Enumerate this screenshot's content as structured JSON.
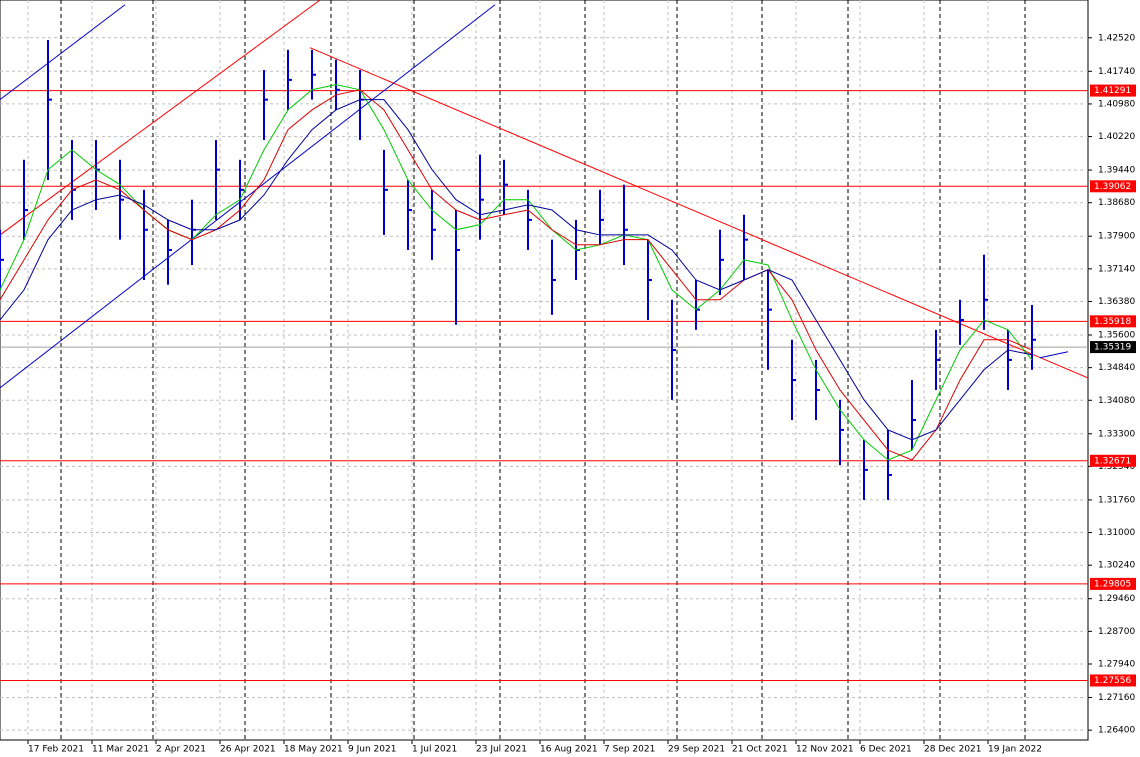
{
  "chart_data": {
    "type": "ohlc",
    "color": "#0000cc",
    "x": [
      0,
      6,
      12,
      18,
      24,
      30,
      36,
      42,
      48,
      54,
      60,
      66,
      72,
      78,
      84,
      90,
      96,
      102,
      108,
      114,
      120,
      126,
      132,
      138,
      144,
      150,
      156,
      162,
      168,
      174,
      180,
      186,
      192,
      198,
      204,
      210,
      216,
      222,
      228,
      234,
      240,
      246,
      252,
      258
    ],
    "high": [
      1.3805,
      1.3968,
      1.4247,
      1.4014,
      1.4014,
      1.3968,
      1.3898,
      1.3828,
      1.3875,
      1.4014,
      1.3968,
      1.4177,
      1.4224,
      1.4224,
      1.4201,
      1.4177,
      1.3991,
      1.3921,
      1.3898,
      1.3851,
      1.398,
      1.3968,
      1.3898,
      1.3782,
      1.3828,
      1.3898,
      1.391,
      1.3782,
      1.3642,
      1.3688,
      1.3805,
      1.384,
      1.3712,
      1.3549,
      1.3502,
      1.3409,
      1.3316,
      1.3339,
      1.3455,
      1.3572,
      1.3642,
      1.3747,
      1.3572,
      1.363
    ],
    "low": [
      1.3665,
      1.3782,
      1.3921,
      1.3828,
      1.3851,
      1.3782,
      1.3688,
      1.3677,
      1.3723,
      1.3828,
      1.3828,
      1.4014,
      1.4084,
      1.4108,
      1.4084,
      1.4014,
      1.3793,
      1.3758,
      1.3735,
      1.3584,
      1.3782,
      1.384,
      1.3758,
      1.3607,
      1.3688,
      1.377,
      1.3723,
      1.3595,
      1.3409,
      1.3572,
      1.3653,
      1.3688,
      1.3479,
      1.3362,
      1.3362,
      1.3257,
      1.3176,
      1.3176,
      1.3292,
      1.3432,
      1.3537,
      1.3572,
      1.3432,
      1.3479
    ],
    "close": [
      1.3735,
      1.3851,
      1.4108,
      1.3898,
      1.3945,
      1.3875,
      1.3805,
      1.3758,
      1.3805,
      1.3945,
      1.3898,
      1.4108,
      1.4154,
      1.4166,
      1.4131,
      1.4108,
      1.3898,
      1.3851,
      1.3805,
      1.3758,
      1.3875,
      1.391,
      1.3828,
      1.3688,
      1.3758,
      1.3828,
      1.3805,
      1.3688,
      1.3525,
      1.3619,
      1.3735,
      1.3782,
      1.3619,
      1.3455,
      1.3432,
      1.3339,
      1.3246,
      1.3234,
      1.3362,
      1.3502,
      1.3595,
      1.3642,
      1.3502,
      1.3549
    ],
    "lines": [
      {
        "color": "#00cc00",
        "values": [
          1.3665,
          1.3782,
          1.3945,
          1.3991,
          1.3945,
          1.391,
          1.3851,
          1.3805,
          1.3782,
          1.384,
          1.3875,
          1.3991,
          1.4084,
          1.4131,
          1.4143,
          1.4131,
          1.4038,
          1.3921,
          1.3851,
          1.3805,
          1.3817,
          1.3875,
          1.3875,
          1.3805,
          1.3758,
          1.377,
          1.3793,
          1.3782,
          1.3665,
          1.3619,
          1.3665,
          1.3735,
          1.3723,
          1.3595,
          1.3479,
          1.3386,
          1.3316,
          1.3269,
          1.3292,
          1.3409,
          1.3525,
          1.3595,
          1.3572,
          1.3502
        ]
      },
      {
        "color": "#dd0000",
        "values": [
          1.3642,
          1.3735,
          1.3828,
          1.3898,
          1.3921,
          1.3898,
          1.3851,
          1.3805,
          1.3782,
          1.3805,
          1.3851,
          1.3921,
          1.4038,
          1.4084,
          1.4119,
          1.4131,
          1.4084,
          1.3991,
          1.3898,
          1.3851,
          1.3828,
          1.384,
          1.3851,
          1.3805,
          1.377,
          1.377,
          1.3782,
          1.3782,
          1.3712,
          1.3642,
          1.3642,
          1.3688,
          1.3712,
          1.3642,
          1.3525,
          1.3432,
          1.3362,
          1.3292,
          1.3269,
          1.3339,
          1.3455,
          1.3549,
          1.3549,
          1.3525
        ]
      },
      {
        "color": "#000099",
        "values": [
          1.3595,
          1.3665,
          1.3782,
          1.3851,
          1.3875,
          1.3886,
          1.3863,
          1.3828,
          1.3805,
          1.3805,
          1.3828,
          1.3886,
          1.3968,
          1.4038,
          1.4084,
          1.4108,
          1.4108,
          1.4038,
          1.3945,
          1.3875,
          1.384,
          1.3851,
          1.3863,
          1.3851,
          1.3805,
          1.3793,
          1.3793,
          1.3793,
          1.3758,
          1.3688,
          1.3665,
          1.3688,
          1.3712,
          1.3688,
          1.3595,
          1.3502,
          1.3409,
          1.3339,
          1.3316,
          1.3339,
          1.3409,
          1.3479,
          1.3525,
          1.3514
        ]
      }
    ],
    "trendlines": [
      {
        "color": "#ff0000",
        "x": [
          77.5,
          272
        ],
        "y": [
          1.4229,
          1.346
        ]
      },
      {
        "color": "#ff0000",
        "x": [
          0,
          80
        ],
        "y": [
          1.3793,
          1.434
        ]
      },
      {
        "color": "#0000cc",
        "x": [
          0,
          31.25
        ],
        "y": [
          1.4108,
          1.4329
        ]
      },
      {
        "color": "#0000cc",
        "x": [
          0,
          123.75
        ],
        "y": [
          1.3437,
          1.4329
        ]
      },
      {
        "color": "#0000cc",
        "x": [
          260,
          267
        ],
        "y": [
          1.3507,
          1.3521
        ]
      }
    ],
    "levels": [
      1.41291,
      1.39062,
      1.35918,
      1.32671,
      1.29805,
      1.27556
    ],
    "level_color": "#ff0000",
    "current_price": 1.35319,
    "separators": [
      15.25,
      38.25,
      61.25,
      82.75,
      103.5,
      125,
      146.25,
      169.25,
      190.5,
      212,
      235,
      256.25
    ],
    "grid": true,
    "xlim": [
      0,
      272
    ],
    "ylim": [
      1.2617,
      1.434
    ],
    "xticks": [
      {
        "value": 7,
        "label": "17 Feb 2021"
      },
      {
        "value": 23,
        "label": "11 Mar 2021"
      },
      {
        "value": 39,
        "label": "2 Apr 2021"
      },
      {
        "value": 55,
        "label": "26 Apr 2021"
      },
      {
        "value": 71,
        "label": "18 May 2021"
      },
      {
        "value": 87,
        "label": "9 Jun 2021"
      },
      {
        "value": 103,
        "label": "1 Jul 2021"
      },
      {
        "value": 119,
        "label": "23 Jul 2021"
      },
      {
        "value": 135,
        "label": "16 Aug 2021"
      },
      {
        "value": 151,
        "label": "7 Sep 2021"
      },
      {
        "value": 167,
        "label": "29 Sep 2021"
      },
      {
        "value": 183,
        "label": "21 Oct 2021"
      },
      {
        "value": 199,
        "label": "12 Nov 2021"
      },
      {
        "value": 215,
        "label": "6 Dec 2021"
      },
      {
        "value": 231,
        "label": "28 Dec 2021"
      },
      {
        "value": 247,
        "label": "19 Jan 2022"
      }
    ],
    "yticks": [
      {
        "value": 1.4252,
        "label": "1.42520"
      },
      {
        "value": 1.4174,
        "label": "1.41740"
      },
      {
        "value": 1.4098,
        "label": "1.40980"
      },
      {
        "value": 1.4022,
        "label": "1.40220"
      },
      {
        "value": 1.3944,
        "label": "1.39440"
      },
      {
        "value": 1.3868,
        "label": "1.38680"
      },
      {
        "value": 1.379,
        "label": "1.37900"
      },
      {
        "value": 1.3714,
        "label": "1.37140"
      },
      {
        "value": 1.3638,
        "label": "1.36380"
      },
      {
        "value": 1.356,
        "label": "1.35600"
      },
      {
        "value": 1.3484,
        "label": "1.34840"
      },
      {
        "value": 1.3408,
        "label": "1.34080"
      },
      {
        "value": 1.333,
        "label": "1.33300"
      },
      {
        "value": 1.3254,
        "label": "1.32540"
      },
      {
        "value": 1.3176,
        "label": "1.31760"
      },
      {
        "value": 1.31,
        "label": "1.31000"
      },
      {
        "value": 1.3024,
        "label": "1.30240"
      },
      {
        "value": 1.2946,
        "label": "1.29460"
      },
      {
        "value": 1.287,
        "label": "1.28700"
      },
      {
        "value": 1.2794,
        "label": "1.27940"
      },
      {
        "value": 1.2716,
        "label": "1.27160"
      },
      {
        "value": 1.264,
        "label": "1.26400"
      }
    ]
  }
}
